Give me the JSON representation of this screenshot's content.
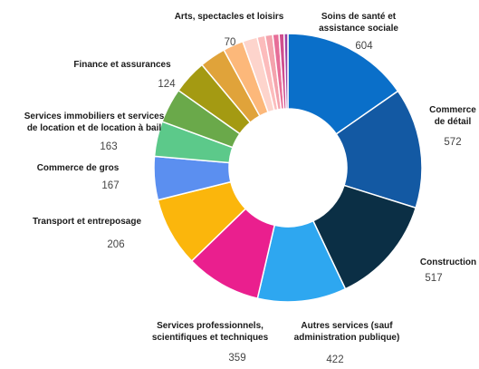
{
  "chart_data": {
    "type": "pie",
    "donut": true,
    "title": "",
    "slices": [
      {
        "label": "Soins de santé et\nassistance sociale",
        "value": 604,
        "color": "#0a6fc9"
      },
      {
        "label": "Commerce\nde détail",
        "value": 572,
        "color": "#1359a3"
      },
      {
        "label": "Construction",
        "value": 517,
        "color": "#0b2f45"
      },
      {
        "label": "Autres services (sauf\nadministration publique)",
        "value": 422,
        "color": "#2ea7f0"
      },
      {
        "label": "Services professionnels,\nscientifiques et techniques",
        "value": 359,
        "color": "#ea1f8e"
      },
      {
        "label": "",
        "value": 330,
        "color": "#fbb60c"
      },
      {
        "label": "Transport et entreposage",
        "value": 206,
        "color": "#5b8ff0"
      },
      {
        "label": "Commerce de gros",
        "value": 167,
        "color": "#5cc98a"
      },
      {
        "label": "",
        "value": 165,
        "color": "#6aa94a"
      },
      {
        "label": "Services immobiliers et services\nde location et de location à bail",
        "value": 163,
        "color": "#a49a12"
      },
      {
        "label": "Finance et assurances",
        "value": 124,
        "color": "#e0a33a"
      },
      {
        "label": "",
        "value": 97,
        "color": "#fcb87a"
      },
      {
        "label": "Arts, spectacles et loisirs",
        "value": 70,
        "color": "#fdd4cc"
      },
      {
        "label": "",
        "value": 38,
        "color": "#fcbcbc"
      },
      {
        "label": "",
        "value": 36,
        "color": "#f4a3ad"
      },
      {
        "label": "",
        "value": 30,
        "color": "#e76e98"
      },
      {
        "label": "",
        "value": 24,
        "color": "#cf4e8e"
      },
      {
        "label": "",
        "value": 18,
        "color": "#9a3fa6"
      }
    ]
  }
}
